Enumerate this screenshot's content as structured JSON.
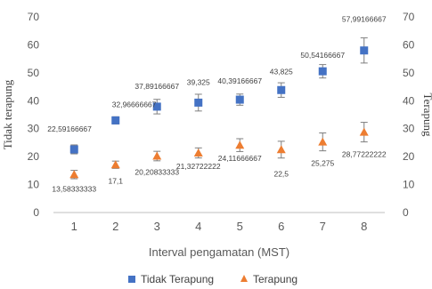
{
  "chart_data": {
    "type": "scatter",
    "xlabel": "Interval pengamatan (MST)",
    "ylabel": "Tidak terapung",
    "ylabel_right": "Terapung",
    "x": [
      1,
      2,
      3,
      4,
      5,
      6,
      7,
      8
    ],
    "x_ticks": [
      "1",
      "2",
      "3",
      "4",
      "5",
      "6",
      "7",
      "8"
    ],
    "ylim": [
      0,
      70
    ],
    "y_ticks": [
      "0",
      "10",
      "20",
      "30",
      "40",
      "50",
      "60",
      "70"
    ],
    "grid": false,
    "legend_position": "bottom",
    "series": [
      {
        "name": "Tidak Terapung",
        "marker": "square",
        "color": "#4472C4",
        "values": [
          22.59166667,
          32.96666667,
          37.89166667,
          39.325,
          40.39166667,
          43.825,
          50.54166667,
          57.99166667
        ],
        "errors": [
          1.6,
          1.3,
          2.6,
          3.0,
          2.0,
          2.6,
          2.4,
          4.5
        ],
        "labels": [
          "22,59166667",
          "32,96666667",
          "37,89166667",
          "39,325",
          "40,39166667",
          "43,825",
          "50,54166667",
          "57,99166667"
        ]
      },
      {
        "name": "Terapung",
        "marker": "triangle",
        "color": "#ED7D31",
        "values": [
          13.58333333,
          17.1,
          20.20833333,
          21.32722222,
          24.11666667,
          22.5,
          25.275,
          28.77222222
        ],
        "errors": [
          1.5,
          1.3,
          1.7,
          1.8,
          2.3,
          3.0,
          3.2,
          3.5
        ],
        "labels": [
          "13,58333333",
          "17,1",
          "20,20833333",
          "21,32722222",
          "24,11666667",
          "22,5",
          "25,275",
          "28,77222222"
        ]
      }
    ]
  }
}
